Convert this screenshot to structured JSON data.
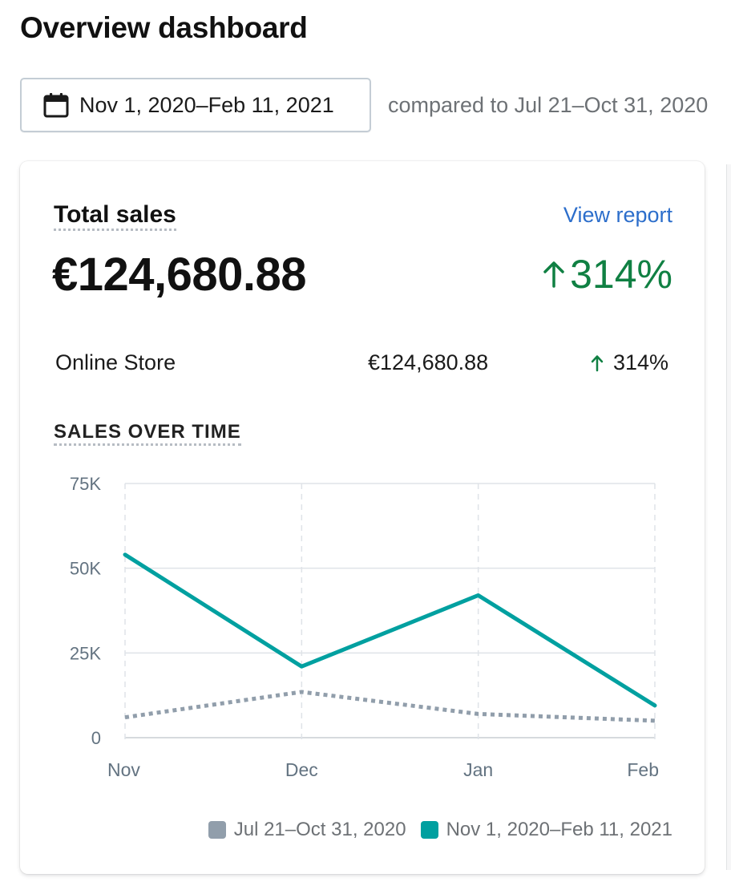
{
  "header": {
    "title": "Overview dashboard",
    "date_range_label": "Nov 1, 2020–Feb 11, 2021",
    "compared_text": "compared to Jul 21–Oct 31, 2020",
    "date_icon": "calendar-icon"
  },
  "card": {
    "title": "Total sales",
    "view_report": "View report",
    "total_value": "€124,680.88",
    "total_change": "314%",
    "change_icon": "arrow-up-icon",
    "rows": [
      {
        "label": "Online Store",
        "value": "€124,680.88",
        "change": "314%"
      }
    ],
    "section_title": "SALES OVER TIME"
  },
  "colors": {
    "current_series": "#00a0a0",
    "previous_series": "#919eab",
    "positive_change": "#108043",
    "link": "#2c6ecb"
  },
  "chart_data": {
    "type": "line",
    "title": "SALES OVER TIME",
    "categories": [
      "Nov",
      "Dec",
      "Jan",
      "Feb"
    ],
    "y_ticks": [
      "75K",
      "50K",
      "25K",
      "0"
    ],
    "ylim": [
      0,
      75000
    ],
    "grid": true,
    "legend_position": "bottom-right",
    "series": [
      {
        "name": "Jul 21–Oct 31, 2020",
        "style": "dotted",
        "color": "#919eab",
        "values": [
          6000,
          13500,
          7000,
          5000
        ]
      },
      {
        "name": "Nov 1, 2020–Feb 11, 2021",
        "style": "solid",
        "color": "#00a0a0",
        "values": [
          54000,
          21000,
          42000,
          9500
        ]
      }
    ]
  }
}
